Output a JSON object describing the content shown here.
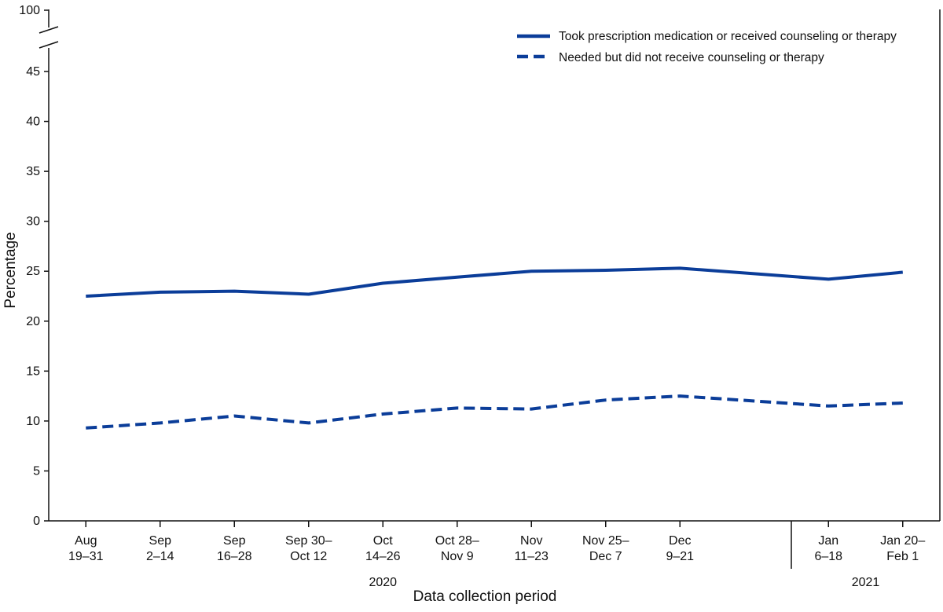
{
  "chart_data": {
    "type": "line",
    "title": "",
    "xlabel": "Data collection period",
    "ylabel": "Percentage",
    "ylim": [
      0,
      45
    ],
    "axis_break_top_value": "100",
    "y_ticks": [
      "0",
      "5",
      "10",
      "15",
      "20",
      "25",
      "30",
      "35",
      "40",
      "45"
    ],
    "categories": [
      [
        "Aug",
        "19–31"
      ],
      [
        "Sep",
        "2–14"
      ],
      [
        "Sep",
        "16–28"
      ],
      [
        "Sep 30–",
        "Oct 12"
      ],
      [
        "Oct",
        "14–26"
      ],
      [
        "Oct 28–",
        "Nov 9"
      ],
      [
        "Nov",
        "11–23"
      ],
      [
        "Nov 25–",
        "Dec 7"
      ],
      [
        "Dec",
        "9–21"
      ],
      [
        "Jan",
        "6–18"
      ],
      [
        "Jan 20–",
        "Feb 1"
      ]
    ],
    "year_groups": [
      {
        "label": "2020",
        "from": 0,
        "to": 8
      },
      {
        "label": "2021",
        "from": 9,
        "to": 10
      }
    ],
    "x_positions": [
      0,
      1,
      2,
      3,
      4,
      5,
      6,
      7,
      8,
      10,
      11
    ],
    "x_range": [
      -0.5,
      11.5
    ],
    "year_divider_position": 9.5,
    "series": [
      {
        "name": "Took prescription medication or received counseling or therapy",
        "style": "solid",
        "color": "#0b3d99",
        "values": [
          22.5,
          22.9,
          23.0,
          22.7,
          23.8,
          24.4,
          25.0,
          25.1,
          25.3,
          24.2,
          24.9
        ]
      },
      {
        "name": "Needed but did not receive counseling or therapy",
        "style": "dashed",
        "color": "#0b3d99",
        "values": [
          9.3,
          9.8,
          10.5,
          9.8,
          10.7,
          11.3,
          11.2,
          12.1,
          12.5,
          11.5,
          11.8
        ]
      }
    ],
    "legend_position": "top-right",
    "grid": false
  }
}
